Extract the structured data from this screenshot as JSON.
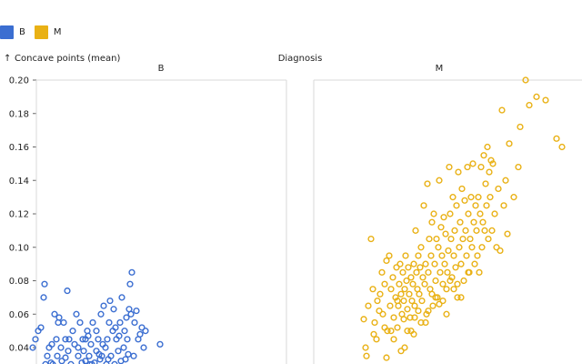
{
  "chart_data": {
    "type": "scatter",
    "facet_label": "Diagnosis",
    "ylabel": "Concave points (mean)",
    "y_arrow": "↑",
    "ylim": [
      0.02,
      0.2
    ],
    "y_ticks": [
      "0.20",
      "0.18",
      "0.16",
      "0.14",
      "0.12",
      "0.10",
      "0.08",
      "0.06",
      "0.04"
    ],
    "legend": [
      {
        "name": "B",
        "color": "#3b6ed1"
      },
      {
        "name": "M",
        "color": "#e9b115"
      }
    ],
    "panels": [
      {
        "name": "B",
        "color": "#3b6ed1",
        "points": [
          [
            36,
            0.04
          ],
          [
            39,
            0.045
          ],
          [
            42,
            0.05
          ],
          [
            45,
            0.052
          ],
          [
            48,
            0.07
          ],
          [
            49,
            0.078
          ],
          [
            50,
            0.03
          ],
          [
            52,
            0.035
          ],
          [
            54,
            0.04
          ],
          [
            56,
            0.031
          ],
          [
            58,
            0.03
          ],
          [
            60,
            0.06
          ],
          [
            62,
            0.045
          ],
          [
            64,
            0.055
          ],
          [
            65,
            0.058
          ],
          [
            67,
            0.04
          ],
          [
            68,
            0.032
          ],
          [
            70,
            0.055
          ],
          [
            72,
            0.034
          ],
          [
            74,
            0.074
          ],
          [
            75,
            0.038
          ],
          [
            76,
            0.045
          ],
          [
            78,
            0.03
          ],
          [
            80,
            0.05
          ],
          [
            82,
            0.042
          ],
          [
            84,
            0.06
          ],
          [
            86,
            0.035
          ],
          [
            88,
            0.055
          ],
          [
            90,
            0.031
          ],
          [
            91,
            0.045
          ],
          [
            92,
            0.038
          ],
          [
            94,
            0.032
          ],
          [
            96,
            0.05
          ],
          [
            98,
            0.035
          ],
          [
            99,
            0.03
          ],
          [
            100,
            0.042
          ],
          [
            102,
            0.055
          ],
          [
            104,
            0.031
          ],
          [
            106,
            0.038
          ],
          [
            108,
            0.045
          ],
          [
            110,
            0.033
          ],
          [
            111,
            0.06
          ],
          [
            112,
            0.035
          ],
          [
            114,
            0.065
          ],
          [
            116,
            0.04
          ],
          [
            117,
            0.03
          ],
          [
            118,
            0.045
          ],
          [
            120,
            0.055
          ],
          [
            121,
            0.068
          ],
          [
            122,
            0.035
          ],
          [
            124,
            0.05
          ],
          [
            125,
            0.063
          ],
          [
            126,
            0.03
          ],
          [
            128,
            0.045
          ],
          [
            130,
            0.038
          ],
          [
            132,
            0.055
          ],
          [
            133,
            0.032
          ],
          [
            134,
            0.07
          ],
          [
            136,
            0.04
          ],
          [
            138,
            0.033
          ],
          [
            139,
            0.058
          ],
          [
            140,
            0.045
          ],
          [
            141,
            0.036
          ],
          [
            142,
            0.063
          ],
          [
            143,
            0.078
          ],
          [
            144,
            0.06
          ],
          [
            145,
            0.085
          ],
          [
            147,
            0.035
          ],
          [
            148,
            0.055
          ],
          [
            150,
            0.062
          ],
          [
            152,
            0.045
          ],
          [
            154,
            0.048
          ],
          [
            156,
            0.052
          ],
          [
            158,
            0.04
          ],
          [
            160,
            0.05
          ],
          [
            176,
            0.042
          ],
          [
            86,
            0.04
          ],
          [
            94,
            0.045
          ],
          [
            101,
            0.03
          ],
          [
            106,
            0.05
          ],
          [
            113,
            0.042
          ],
          [
            119,
            0.033
          ],
          [
            127,
            0.052
          ],
          [
            131,
            0.047
          ],
          [
            137,
            0.05
          ],
          [
            72,
            0.045
          ],
          [
            63,
            0.035
          ],
          [
            57,
            0.042
          ],
          [
            97,
            0.047
          ],
          [
            109,
            0.036
          ]
        ]
      },
      {
        "name": "M",
        "color": "#e9b115",
        "points": [
          [
            400,
            0.057
          ],
          [
            402,
            0.04
          ],
          [
            405,
            0.065
          ],
          [
            408,
            0.105
          ],
          [
            410,
            0.075
          ],
          [
            412,
            0.055
          ],
          [
            414,
            0.045
          ],
          [
            415,
            0.068
          ],
          [
            418,
            0.072
          ],
          [
            420,
            0.085
          ],
          [
            421,
            0.06
          ],
          [
            423,
            0.078
          ],
          [
            425,
            0.092
          ],
          [
            426,
            0.05
          ],
          [
            428,
            0.095
          ],
          [
            429,
            0.065
          ],
          [
            430,
            0.075
          ],
          [
            432,
            0.082
          ],
          [
            433,
            0.058
          ],
          [
            435,
            0.07
          ],
          [
            436,
            0.088
          ],
          [
            437,
            0.052
          ],
          [
            438,
            0.065
          ],
          [
            439,
            0.078
          ],
          [
            440,
            0.09
          ],
          [
            441,
            0.072
          ],
          [
            442,
            0.06
          ],
          [
            443,
            0.085
          ],
          [
            444,
            0.068
          ],
          [
            445,
            0.075
          ],
          [
            446,
            0.095
          ],
          [
            447,
            0.08
          ],
          [
            448,
            0.063
          ],
          [
            449,
            0.088
          ],
          [
            450,
            0.072
          ],
          [
            451,
            0.058
          ],
          [
            452,
            0.082
          ],
          [
            453,
            0.068
          ],
          [
            454,
            0.078
          ],
          [
            455,
            0.09
          ],
          [
            456,
            0.065
          ],
          [
            457,
            0.11
          ],
          [
            458,
            0.085
          ],
          [
            459,
            0.075
          ],
          [
            460,
            0.095
          ],
          [
            461,
            0.072
          ],
          [
            462,
            0.088
          ],
          [
            463,
            0.1
          ],
          [
            464,
            0.068
          ],
          [
            465,
            0.082
          ],
          [
            466,
            0.125
          ],
          [
            467,
            0.078
          ],
          [
            468,
            0.09
          ],
          [
            469,
            0.06
          ],
          [
            470,
            0.138
          ],
          [
            471,
            0.085
          ],
          [
            472,
            0.105
          ],
          [
            473,
            0.075
          ],
          [
            474,
            0.095
          ],
          [
            475,
            0.115
          ],
          [
            476,
            0.065
          ],
          [
            477,
            0.12
          ],
          [
            478,
            0.09
          ],
          [
            479,
            0.08
          ],
          [
            480,
            0.105
          ],
          [
            481,
            0.07
          ],
          [
            482,
            0.1
          ],
          [
            483,
            0.14
          ],
          [
            484,
            0.085
          ],
          [
            485,
            0.112
          ],
          [
            486,
            0.095
          ],
          [
            487,
            0.078
          ],
          [
            488,
            0.118
          ],
          [
            489,
            0.09
          ],
          [
            490,
            0.108
          ],
          [
            491,
            0.075
          ],
          [
            492,
            0.085
          ],
          [
            493,
            0.098
          ],
          [
            494,
            0.148
          ],
          [
            495,
            0.12
          ],
          [
            496,
            0.105
          ],
          [
            497,
            0.082
          ],
          [
            498,
            0.13
          ],
          [
            499,
            0.095
          ],
          [
            500,
            0.11
          ],
          [
            501,
            0.088
          ],
          [
            502,
            0.125
          ],
          [
            503,
            0.07
          ],
          [
            504,
            0.145
          ],
          [
            505,
            0.1
          ],
          [
            506,
            0.115
          ],
          [
            507,
            0.09
          ],
          [
            508,
            0.135
          ],
          [
            509,
            0.105
          ],
          [
            510,
            0.08
          ],
          [
            511,
            0.128
          ],
          [
            512,
            0.11
          ],
          [
            513,
            0.095
          ],
          [
            514,
            0.148
          ],
          [
            515,
            0.12
          ],
          [
            516,
            0.085
          ],
          [
            517,
            0.105
          ],
          [
            518,
            0.13
          ],
          [
            519,
            0.1
          ],
          [
            520,
            0.15
          ],
          [
            521,
            0.115
          ],
          [
            522,
            0.09
          ],
          [
            523,
            0.125
          ],
          [
            524,
            0.11
          ],
          [
            525,
            0.095
          ],
          [
            526,
            0.13
          ],
          [
            527,
            0.085
          ],
          [
            528,
            0.12
          ],
          [
            529,
            0.148
          ],
          [
            530,
            0.1
          ],
          [
            531,
            0.115
          ],
          [
            532,
            0.155
          ],
          [
            533,
            0.11
          ],
          [
            534,
            0.138
          ],
          [
            535,
            0.125
          ],
          [
            536,
            0.16
          ],
          [
            537,
            0.105
          ],
          [
            538,
            0.145
          ],
          [
            539,
            0.13
          ],
          [
            540,
            0.152
          ],
          [
            541,
            0.11
          ],
          [
            542,
            0.15
          ],
          [
            544,
            0.12
          ],
          [
            546,
            0.1
          ],
          [
            548,
            0.135
          ],
          [
            550,
            0.098
          ],
          [
            552,
            0.182
          ],
          [
            554,
            0.125
          ],
          [
            556,
            0.14
          ],
          [
            558,
            0.108
          ],
          [
            560,
            0.162
          ],
          [
            565,
            0.13
          ],
          [
            570,
            0.148
          ],
          [
            572,
            0.172
          ],
          [
            578,
            0.2
          ],
          [
            582,
            0.185
          ],
          [
            590,
            0.19
          ],
          [
            600,
            0.188
          ],
          [
            612,
            0.165
          ],
          [
            618,
            0.16
          ],
          [
            445,
            0.04
          ],
          [
            452,
            0.05
          ],
          [
            460,
            0.062
          ],
          [
            468,
            0.055
          ],
          [
            475,
            0.072
          ],
          [
            483,
            0.066
          ],
          [
            491,
            0.06
          ],
          [
            499,
            0.075
          ],
          [
            507,
            0.07
          ],
          [
            515,
            0.085
          ],
          [
            430,
            0.05
          ],
          [
            437,
            0.068
          ],
          [
            444,
            0.057
          ],
          [
            455,
            0.048
          ],
          [
            463,
            0.055
          ],
          [
            471,
            0.062
          ],
          [
            479,
            0.07
          ],
          [
            487,
            0.068
          ],
          [
            495,
            0.08
          ],
          [
            503,
            0.078
          ],
          [
            425,
            0.034
          ],
          [
            433,
            0.045
          ],
          [
            441,
            0.038
          ],
          [
            448,
            0.05
          ],
          [
            456,
            0.058
          ],
          [
            417,
            0.062
          ],
          [
            423,
            0.052
          ],
          [
            411,
            0.048
          ],
          [
            403,
            0.035
          ]
        ]
      }
    ]
  }
}
